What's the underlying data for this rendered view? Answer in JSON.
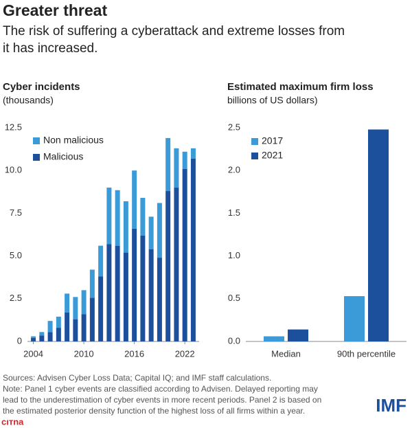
{
  "title": "Greater threat",
  "subtitle": [
    "The risk of suffering a cyberattack and extreme losses from",
    "it has increased."
  ],
  "chart_data": [
    {
      "type": "bar",
      "stacked": true,
      "title": "Cyber incidents",
      "subtitle": "(thousands)",
      "x": [
        2004,
        2005,
        2006,
        2007,
        2008,
        2009,
        2010,
        2011,
        2012,
        2013,
        2014,
        2015,
        2016,
        2017,
        2018,
        2019,
        2020,
        2021,
        2022,
        2023
      ],
      "xlim": [
        2003.3,
        2023.7
      ],
      "xticks": [
        2004,
        2010,
        2016,
        2022
      ],
      "ylim": [
        0,
        12.5
      ],
      "yticks": [
        0,
        2.5,
        {
          "value": 5,
          "label": "5.0"
        },
        7.5,
        {
          "value": 10,
          "label": "10.0"
        },
        12.5
      ],
      "series": [
        {
          "name": "Malicious",
          "color": "#1c4f9c",
          "values": [
            0.2,
            0.35,
            0.55,
            0.8,
            1.7,
            1.3,
            1.6,
            2.55,
            3.8,
            5.7,
            5.6,
            5.2,
            6.6,
            6.2,
            5.4,
            4.9,
            8.8,
            9.0,
            10.1,
            10.7
          ]
        },
        {
          "name": "Non malicious",
          "color": "#3b9ad8",
          "values": [
            0.1,
            0.2,
            0.65,
            0.65,
            1.1,
            1.3,
            1.4,
            1.65,
            1.8,
            3.3,
            3.25,
            3.0,
            3.4,
            2.2,
            1.9,
            3.2,
            3.1,
            2.3,
            1.0,
            0.6
          ]
        }
      ]
    },
    {
      "type": "bar",
      "stacked": false,
      "title": "Estimated maximum firm loss",
      "subtitle": "billions of US dollars)",
      "categories": [
        "Median",
        "90th percentile"
      ],
      "ylim": [
        0,
        2.5
      ],
      "yticks": [
        {
          "value": 0,
          "label": "0.0"
        },
        0.5,
        {
          "value": 1,
          "label": "1.0"
        },
        1.5,
        {
          "value": 2,
          "label": "2.0"
        },
        2.5
      ],
      "series": [
        {
          "name": "2017",
          "color": "#3b9ad8",
          "values": [
            0.06,
            0.53
          ]
        },
        {
          "name": "2021",
          "color": "#1c4f9c",
          "values": [
            0.14,
            2.48
          ]
        }
      ]
    }
  ],
  "notes": [
    "Sources: Advisen Cyber Loss Data; Capital IQ; and IMF staff calculations.",
    "Note: Panel 1 cyber events are classified according to Advisen. Delayed reporting may",
    "lead to the underestimation of cyber events in more recent periods. Panel 2 is based on",
    "the estimated posterior density function of the highest loss of all firms within a year."
  ],
  "logo": "IMF",
  "watermark": "cıтna"
}
